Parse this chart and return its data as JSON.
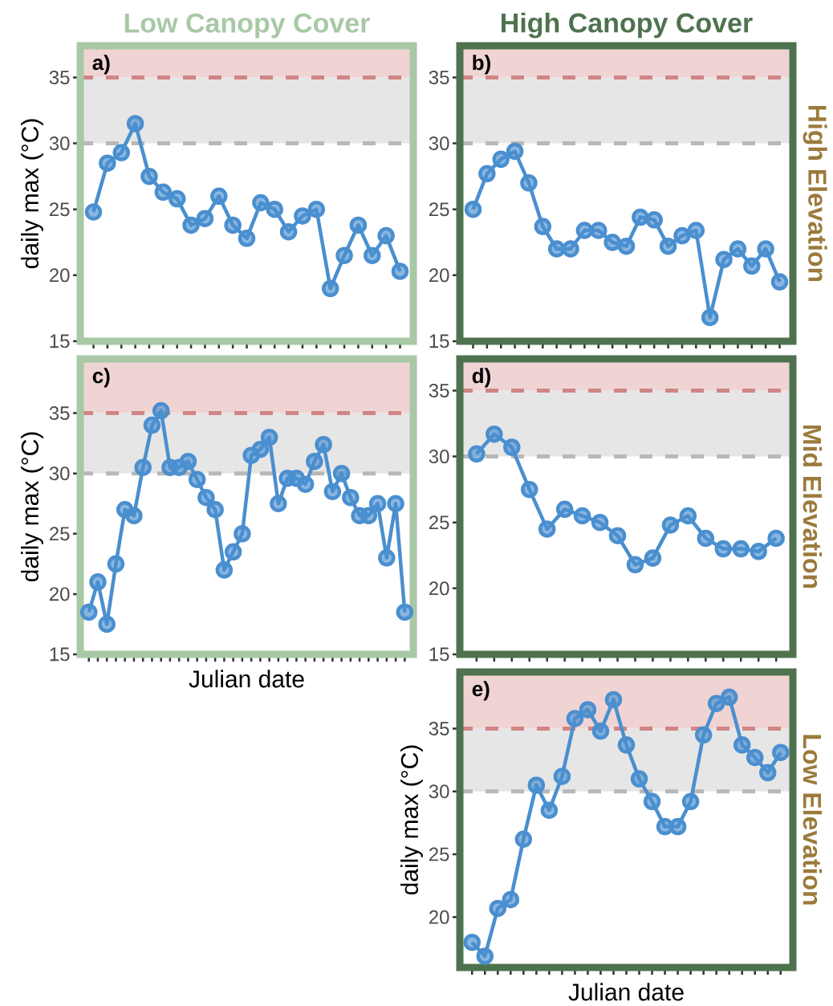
{
  "chart_data": [
    {
      "type": "line",
      "title": "Low Canopy Cover",
      "ylabel": "daily max (°C)",
      "annotations": [
        "a)"
      ],
      "categories": [
        null,
        null,
        null,
        null,
        null,
        null,
        null,
        null,
        null,
        null,
        null,
        null,
        null,
        null,
        null,
        null,
        null,
        null,
        null,
        null,
        null,
        null,
        null
      ],
      "series": [
        {
          "color": "#4a8fcf",
          "values": [
            24.8,
            28.5,
            29.3,
            31.5,
            27.5,
            26.3,
            25.8,
            23.8,
            24.3,
            26.0,
            23.8,
            22.8,
            25.5,
            25.0,
            23.3,
            24.5,
            25.0,
            19.0,
            21.5,
            23.8,
            21.5,
            23.0,
            20.3
          ]
        }
      ],
      "ylim": [
        15,
        37.4
      ],
      "yticks": [
        15,
        20,
        25,
        30,
        35
      ],
      "tick_labels": "y",
      "marker": "circle",
      "line_style": "solid",
      "bands": [
        {
          "axis": "y",
          "from": 30,
          "to": 35,
          "color": "#e6e6e6"
        },
        {
          "axis": "y",
          "from": 35,
          "to": 37.4,
          "color": "#f0d4d4"
        }
      ],
      "ref_lines": [
        {
          "axis": "y",
          "value": 30,
          "color": "#b8b8b8",
          "line_style": "dashed"
        },
        {
          "axis": "y",
          "value": 35,
          "color": "#d08585",
          "line_style": "dashed"
        }
      ]
    },
    {
      "type": "line",
      "title": "High Canopy Cover",
      "y2label": "High Elevation",
      "annotations": [
        "b)"
      ],
      "categories": [
        null,
        null,
        null,
        null,
        null,
        null,
        null,
        null,
        null,
        null,
        null,
        null,
        null,
        null,
        null,
        null,
        null,
        null,
        null,
        null,
        null,
        null,
        null
      ],
      "series": [
        {
          "color": "#4a8fcf",
          "values": [
            25.0,
            27.7,
            28.8,
            29.4,
            27.0,
            23.7,
            22.0,
            22.0,
            23.4,
            23.4,
            22.5,
            22.2,
            24.4,
            24.2,
            22.2,
            23.0,
            23.4,
            16.8,
            21.2,
            22.0,
            20.7,
            22.0,
            19.5
          ]
        }
      ],
      "ylim": [
        15,
        37.4
      ],
      "yticks": [
        15,
        20,
        25,
        30,
        35
      ],
      "tick_labels": "y",
      "marker": "circle",
      "line_style": "solid",
      "bands": [
        {
          "axis": "y",
          "from": 30,
          "to": 35,
          "color": "#e6e6e6"
        },
        {
          "axis": "y",
          "from": 35,
          "to": 37.4,
          "color": "#f0d4d4"
        }
      ],
      "ref_lines": [
        {
          "axis": "y",
          "value": 30,
          "color": "#b8b8b8",
          "line_style": "dashed"
        },
        {
          "axis": "y",
          "value": 35,
          "color": "#d08585",
          "line_style": "dashed"
        }
      ]
    },
    {
      "type": "line",
      "xlabel": "Julian date",
      "ylabel": "daily max (°C)",
      "annotations": [
        "c)"
      ],
      "categories": [
        null,
        null,
        null,
        null,
        null,
        null,
        null,
        null,
        null,
        null,
        null,
        null,
        null,
        null,
        null,
        null,
        null,
        null,
        null,
        null,
        null,
        null,
        null,
        null,
        null,
        null,
        null,
        null,
        null,
        null,
        null,
        null,
        null,
        null,
        null,
        null
      ],
      "series": [
        {
          "color": "#4a8fcf",
          "values": [
            18.5,
            21.0,
            17.5,
            22.5,
            27.0,
            26.5,
            30.5,
            34.0,
            35.2,
            30.5,
            30.5,
            31.0,
            29.5,
            28.0,
            27.0,
            22.0,
            23.5,
            25.0,
            31.5,
            32.0,
            33.0,
            27.5,
            29.6,
            29.6,
            29.1,
            31.0,
            32.4,
            28.5,
            30.0,
            28.0,
            26.5,
            26.5,
            27.5,
            23.0,
            27.5,
            18.5
          ]
        }
      ],
      "ylim": [
        15,
        39.5
      ],
      "yticks": [
        15,
        20,
        25,
        30,
        35
      ],
      "tick_labels": "y",
      "marker": "circle",
      "line_style": "solid",
      "bands": [
        {
          "axis": "y",
          "from": 30,
          "to": 35,
          "color": "#e6e6e6"
        },
        {
          "axis": "y",
          "from": 35,
          "to": 39.5,
          "color": "#f0d4d4"
        }
      ],
      "ref_lines": [
        {
          "axis": "y",
          "value": 30,
          "color": "#b8b8b8",
          "line_style": "dashed"
        },
        {
          "axis": "y",
          "value": 35,
          "color": "#d08585",
          "line_style": "dashed"
        }
      ]
    },
    {
      "type": "line",
      "y2label": "Mid Elevation",
      "annotations": [
        "d)"
      ],
      "categories": [
        null,
        null,
        null,
        null,
        null,
        null,
        null,
        null,
        null,
        null,
        null,
        null,
        null,
        null,
        null,
        null,
        null,
        null
      ],
      "series": [
        {
          "color": "#4a8fcf",
          "values": [
            30.2,
            31.7,
            30.7,
            27.5,
            24.5,
            26.0,
            25.5,
            25.0,
            24.0,
            21.8,
            22.3,
            24.8,
            25.5,
            23.8,
            23.0,
            23.0,
            22.8,
            23.8
          ]
        }
      ],
      "ylim": [
        15,
        37.4
      ],
      "yticks": [
        15,
        20,
        25,
        30,
        35
      ],
      "tick_labels": "y",
      "marker": "circle",
      "line_style": "solid",
      "bands": [
        {
          "axis": "y",
          "from": 30,
          "to": 35,
          "color": "#e6e6e6"
        },
        {
          "axis": "y",
          "from": 35,
          "to": 37.4,
          "color": "#f0d4d4"
        }
      ],
      "ref_lines": [
        {
          "axis": "y",
          "value": 30,
          "color": "#b8b8b8",
          "line_style": "dashed"
        },
        {
          "axis": "y",
          "value": 35,
          "color": "#d08585",
          "line_style": "dashed"
        }
      ]
    },
    {
      "type": "line",
      "xlabel": "Julian date",
      "ylabel": "daily max (°C)",
      "y2label": "Low Elevation",
      "annotations": [
        "e)"
      ],
      "categories": [
        null,
        null,
        null,
        null,
        null,
        null,
        null,
        null,
        null,
        null,
        null,
        null,
        null,
        null,
        null,
        null,
        null,
        null,
        null,
        null,
        null,
        null,
        null,
        null,
        null
      ],
      "series": [
        {
          "color": "#4a8fcf",
          "values": [
            18.0,
            16.9,
            20.7,
            21.4,
            26.2,
            30.5,
            28.5,
            31.2,
            35.8,
            36.5,
            34.8,
            37.3,
            33.7,
            31.0,
            29.2,
            27.2,
            27.2,
            29.2,
            34.5,
            37.0,
            37.5,
            33.7,
            32.7,
            31.5,
            33.1
          ]
        }
      ],
      "ylim": [
        16,
        39.5
      ],
      "yticks": [
        20,
        25,
        30,
        35
      ],
      "tick_labels": "y",
      "marker": "circle",
      "line_style": "solid",
      "bands": [
        {
          "axis": "y",
          "from": 30,
          "to": 35,
          "color": "#e6e6e6"
        },
        {
          "axis": "y",
          "from": 35,
          "to": 39.5,
          "color": "#f0d4d4"
        }
      ],
      "ref_lines": [
        {
          "axis": "y",
          "value": 30,
          "color": "#b8b8b8",
          "line_style": "dashed"
        },
        {
          "axis": "y",
          "value": 35,
          "color": "#d08585",
          "line_style": "dashed"
        }
      ]
    }
  ]
}
